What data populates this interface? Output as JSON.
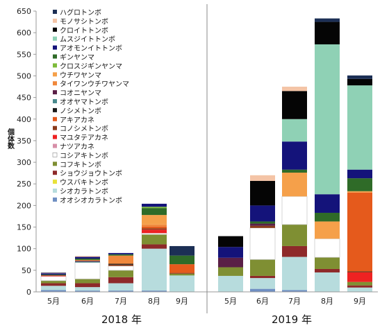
{
  "chart_data": {
    "type": "stacked-bar",
    "ylabel": "個体数",
    "ylim": [
      0,
      650
    ],
    "yticks": [
      0,
      50,
      100,
      150,
      200,
      250,
      300,
      350,
      400,
      450,
      500,
      550,
      600,
      650
    ],
    "legend_position": "top-left",
    "grid": false,
    "series": [
      {
        "name": "オオシオカラトンボ",
        "color": "#6f8fc3"
      },
      {
        "name": "シオカラトンボ",
        "color": "#b7dcdd"
      },
      {
        "name": "ウスバキトンボ",
        "color": "#e8e23a"
      },
      {
        "name": "ショウジョウトンボ",
        "color": "#8e2a2a"
      },
      {
        "name": "コフキトンボ",
        "color": "#7f8f33"
      },
      {
        "name": "コシアキトンボ",
        "color": "#ffffff"
      },
      {
        "name": "ナツアカネ",
        "color": "#d78fa8"
      },
      {
        "name": "マユタテアカネ",
        "color": "#ee2222"
      },
      {
        "name": "コノシメトンボ",
        "color": "#8b3a1a"
      },
      {
        "name": "アキアカネ",
        "color": "#e55a1c"
      },
      {
        "name": "ノシメトンボ",
        "color": "#1b1b1b"
      },
      {
        "name": "オオヤマトンボ",
        "color": "#4a8a8d"
      },
      {
        "name": "コオニヤンマ",
        "color": "#5a1f46"
      },
      {
        "name": "タイワンウチワヤンマ",
        "color": "#f0883c"
      },
      {
        "name": "ウチワヤンマ",
        "color": "#f5a04a"
      },
      {
        "name": "クロスジギンヤンマ",
        "color": "#7dbb3a"
      },
      {
        "name": "ギンヤンマ",
        "color": "#2f6b28"
      },
      {
        "name": "アオモンイトトンボ",
        "color": "#14137a"
      },
      {
        "name": "ムスジイトトンボ",
        "color": "#8fd1b5"
      },
      {
        "name": "クロイトトンボ",
        "color": "#050505"
      },
      {
        "name": "モノサシトンボ",
        "color": "#f4c4a6"
      },
      {
        "name": "ハグロトンボ",
        "color": "#1c2f55"
      }
    ],
    "groups": [
      {
        "label": "2018 年",
        "bars": [
          {
            "month": "5月",
            "segments": [
              {
                "s": 0,
                "v": 4
              },
              {
                "s": 1,
                "v": 10
              },
              {
                "s": 3,
                "v": 6
              },
              {
                "s": 4,
                "v": 6
              },
              {
                "s": 5,
                "v": 10
              },
              {
                "s": 7,
                "v": 2
              },
              {
                "s": 16,
                "v": 2
              },
              {
                "s": 17,
                "v": 3
              },
              {
                "s": 20,
                "v": 1
              },
              {
                "s": 21,
                "v": 1
              }
            ]
          },
          {
            "month": "6月",
            "segments": [
              {
                "s": 0,
                "v": 3
              },
              {
                "s": 1,
                "v": 8
              },
              {
                "s": 3,
                "v": 9
              },
              {
                "s": 4,
                "v": 10
              },
              {
                "s": 5,
                "v": 38
              },
              {
                "s": 11,
                "v": 2
              },
              {
                "s": 12,
                "v": 2
              },
              {
                "s": 13,
                "v": 2
              },
              {
                "s": 16,
                "v": 3
              },
              {
                "s": 17,
                "v": 4
              },
              {
                "s": 20,
                "v": 2
              }
            ]
          },
          {
            "month": "7月",
            "segments": [
              {
                "s": 0,
                "v": 3
              },
              {
                "s": 1,
                "v": 17
              },
              {
                "s": 3,
                "v": 14
              },
              {
                "s": 4,
                "v": 16
              },
              {
                "s": 5,
                "v": 10
              },
              {
                "s": 8,
                "v": 3
              },
              {
                "s": 10,
                "v": 2
              },
              {
                "s": 13,
                "v": 19
              },
              {
                "s": 16,
                "v": 3
              },
              {
                "s": 17,
                "v": 3
              }
            ]
          },
          {
            "month": "8月",
            "segments": [
              {
                "s": 0,
                "v": 3
              },
              {
                "s": 1,
                "v": 97
              },
              {
                "s": 3,
                "v": 10
              },
              {
                "s": 4,
                "v": 23
              },
              {
                "s": 5,
                "v": 3
              },
              {
                "s": 7,
                "v": 8
              },
              {
                "s": 8,
                "v": 3
              },
              {
                "s": 9,
                "v": 4
              },
              {
                "s": 13,
                "v": 5
              },
              {
                "s": 14,
                "v": 22
              },
              {
                "s": 16,
                "v": 16
              },
              {
                "s": 15,
                "v": 3
              },
              {
                "s": 17,
                "v": 7
              }
            ]
          },
          {
            "month": "9月",
            "segments": [
              {
                "s": 1,
                "v": 38
              },
              {
                "s": 4,
                "v": 4
              },
              {
                "s": 8,
                "v": 2
              },
              {
                "s": 9,
                "v": 20
              },
              {
                "s": 16,
                "v": 20
              },
              {
                "s": 21,
                "v": 22
              }
            ]
          }
        ]
      },
      {
        "label": "2019 年",
        "bars": [
          {
            "month": "5月",
            "segments": [
              {
                "s": 1,
                "v": 37
              },
              {
                "s": 4,
                "v": 20
              },
              {
                "s": 12,
                "v": 22
              },
              {
                "s": 17,
                "v": 25
              },
              {
                "s": 19,
                "v": 25
              }
            ]
          },
          {
            "month": "6月",
            "segments": [
              {
                "s": 0,
                "v": 7
              },
              {
                "s": 1,
                "v": 25
              },
              {
                "s": 3,
                "v": 5
              },
              {
                "s": 4,
                "v": 38
              },
              {
                "s": 5,
                "v": 73
              },
              {
                "s": 8,
                "v": 5
              },
              {
                "s": 12,
                "v": 5
              },
              {
                "s": 16,
                "v": 5
              },
              {
                "s": 17,
                "v": 37
              },
              {
                "s": 19,
                "v": 57
              },
              {
                "s": 20,
                "v": 13
              }
            ]
          },
          {
            "month": "7月",
            "segments": [
              {
                "s": 0,
                "v": 4
              },
              {
                "s": 1,
                "v": 77
              },
              {
                "s": 3,
                "v": 25
              },
              {
                "s": 4,
                "v": 50
              },
              {
                "s": 5,
                "v": 65
              },
              {
                "s": 14,
                "v": 55
              },
              {
                "s": 16,
                "v": 7
              },
              {
                "s": 17,
                "v": 65
              },
              {
                "s": 18,
                "v": 52
              },
              {
                "s": 19,
                "v": 65
              },
              {
                "s": 20,
                "v": 10
              }
            ]
          },
          {
            "month": "8月",
            "segments": [
              {
                "s": 1,
                "v": 45
              },
              {
                "s": 3,
                "v": 8
              },
              {
                "s": 4,
                "v": 27
              },
              {
                "s": 5,
                "v": 43
              },
              {
                "s": 14,
                "v": 40
              },
              {
                "s": 16,
                "v": 20
              },
              {
                "s": 17,
                "v": 43
              },
              {
                "s": 18,
                "v": 347
              },
              {
                "s": 19,
                "v": 52
              },
              {
                "s": 21,
                "v": 8
              }
            ]
          },
          {
            "month": "9月",
            "segments": [
              {
                "s": 1,
                "v": 10
              },
              {
                "s": 3,
                "v": 5
              },
              {
                "s": 4,
                "v": 8
              },
              {
                "s": 7,
                "v": 22
              },
              {
                "s": 8,
                "v": 3
              },
              {
                "s": 9,
                "v": 182
              },
              {
                "s": 14,
                "v": 3
              },
              {
                "s": 16,
                "v": 30
              },
              {
                "s": 17,
                "v": 20
              },
              {
                "s": 18,
                "v": 195
              },
              {
                "s": 19,
                "v": 15
              },
              {
                "s": 21,
                "v": 8
              }
            ]
          }
        ]
      }
    ]
  }
}
